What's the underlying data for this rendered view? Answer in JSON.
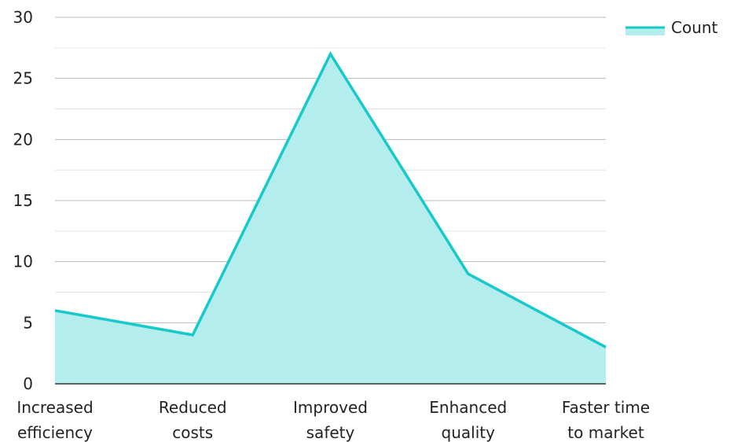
{
  "chart_data": {
    "type": "area",
    "categories": [
      [
        "Increased",
        "efficiency"
      ],
      [
        "Reduced",
        "costs"
      ],
      [
        "Improved",
        "safety"
      ],
      [
        "Enhanced",
        "quality"
      ],
      [
        "Faster time",
        "to market"
      ]
    ],
    "series": [
      {
        "name": "Count",
        "values": [
          6,
          4,
          27,
          9,
          3
        ]
      }
    ],
    "ylim": [
      0,
      30
    ],
    "yticks": [
      0,
      5,
      10,
      15,
      20,
      25,
      30
    ],
    "grid": true,
    "legend": "top-right",
    "colors": {
      "line": "#17c9c9",
      "fill": "#b3eded",
      "grid_major": "#b8b8b8",
      "grid_minor": "#e2e2e2",
      "axis": "#333333"
    }
  }
}
